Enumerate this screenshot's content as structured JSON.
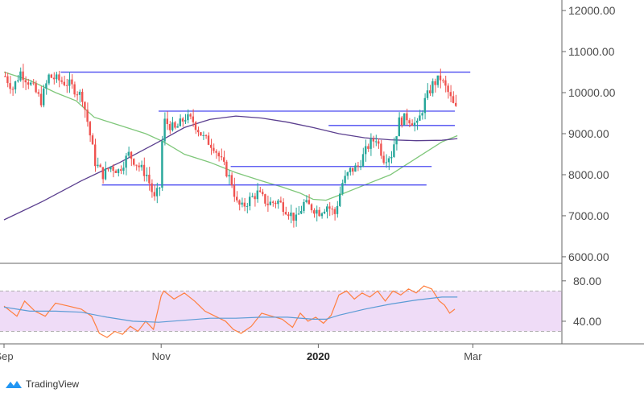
{
  "branding": {
    "label": "TradingView"
  },
  "colors": {
    "up": "#26a69a",
    "down": "#ef5350",
    "ma_fast": "#7fc77a",
    "ma_slow": "#5b3f8f",
    "hlines": "#4a4af0",
    "rsi": "#ff7f3f",
    "rsi_ma": "#5b9bd5",
    "rsi_band": "#efdcf7"
  },
  "chart_data": [
    {
      "type": "candlestick",
      "title": "",
      "y_ticks": [
        "12000.00",
        "11000.00",
        "10000.00",
        "9000.00",
        "8000.00",
        "7000.00",
        "6000.00"
      ],
      "ylim": [
        5900,
        12100
      ],
      "x_ticks": [
        {
          "label": "Sep",
          "day": 0,
          "bold": false
        },
        {
          "label": "Nov",
          "day": 61,
          "bold": false
        },
        {
          "label": "2020",
          "day": 122,
          "bold": true
        },
        {
          "label": "Mar",
          "day": 182,
          "bold": false
        }
      ],
      "anchors": [
        [
          0,
          10400
        ],
        [
          3,
          10100
        ],
        [
          6,
          10500
        ],
        [
          10,
          10200
        ],
        [
          14,
          9800
        ],
        [
          17,
          10400
        ],
        [
          21,
          10300
        ],
        [
          25,
          10200
        ],
        [
          30,
          9900
        ],
        [
          32,
          9300
        ],
        [
          35,
          8300
        ],
        [
          38,
          8000
        ],
        [
          41,
          8200
        ],
        [
          44,
          8100
        ],
        [
          48,
          8500
        ],
        [
          52,
          8200
        ],
        [
          55,
          8000
        ],
        [
          58,
          7400
        ],
        [
          60,
          7700
        ],
        [
          61,
          8800
        ],
        [
          62,
          9300
        ],
        [
          66,
          9100
        ],
        [
          70,
          9400
        ],
        [
          73,
          9300
        ],
        [
          77,
          8900
        ],
        [
          81,
          8700
        ],
        [
          85,
          8200
        ],
        [
          88,
          7800
        ],
        [
          90,
          7300
        ],
        [
          92,
          7200
        ],
        [
          95,
          7400
        ],
        [
          98,
          7550
        ],
        [
          102,
          7300
        ],
        [
          106,
          7350
        ],
        [
          110,
          7100
        ],
        [
          113,
          6900
        ],
        [
          116,
          7300
        ],
        [
          119,
          7200
        ],
        [
          122,
          7100
        ],
        [
          125,
          7250
        ],
        [
          128,
          7050
        ],
        [
          131,
          7800
        ],
        [
          134,
          8100
        ],
        [
          137,
          8200
        ],
        [
          141,
          8700
        ],
        [
          144,
          8900
        ],
        [
          147,
          8400
        ],
        [
          150,
          8500
        ],
        [
          153,
          9300
        ],
        [
          156,
          9400
        ],
        [
          160,
          9200
        ],
        [
          163,
          9800
        ],
        [
          166,
          10200
        ],
        [
          169,
          10350
        ],
        [
          172,
          10000
        ],
        [
          174,
          9700
        ],
        [
          175,
          9600
        ]
      ],
      "series": [
        {
          "name": "",
          "kind": "sma_fast",
          "points": [
            [
              0,
              10500
            ],
            [
              10,
              10300
            ],
            [
              20,
              10000
            ],
            [
              28,
              9800
            ],
            [
              35,
              9400
            ],
            [
              45,
              9200
            ],
            [
              55,
              9000
            ],
            [
              62,
              8800
            ],
            [
              70,
              8500
            ],
            [
              80,
              8300
            ],
            [
              90,
              8050
            ],
            [
              100,
              7850
            ],
            [
              108,
              7700
            ],
            [
              115,
              7550
            ],
            [
              120,
              7400
            ],
            [
              125,
              7380
            ],
            [
              130,
              7500
            ],
            [
              140,
              7750
            ],
            [
              150,
              8000
            ],
            [
              160,
              8400
            ],
            [
              170,
              8800
            ],
            [
              176,
              8950
            ]
          ]
        },
        {
          "name": "",
          "kind": "sma_slow",
          "points": [
            [
              0,
              6900
            ],
            [
              15,
              7350
            ],
            [
              30,
              7850
            ],
            [
              45,
              8300
            ],
            [
              60,
              8800
            ],
            [
              70,
              9150
            ],
            [
              80,
              9350
            ],
            [
              90,
              9430
            ],
            [
              100,
              9380
            ],
            [
              110,
              9280
            ],
            [
              120,
              9150
            ],
            [
              130,
              9000
            ],
            [
              140,
              8900
            ],
            [
              150,
              8850
            ],
            [
              160,
              8830
            ],
            [
              170,
              8840
            ],
            [
              176,
              8880
            ]
          ]
        }
      ],
      "horizontal_levels": [
        {
          "value": 10500,
          "from_day": 22,
          "to_day": 181
        },
        {
          "value": 9550,
          "from_day": 60,
          "to_day": 175
        },
        {
          "value": 9200,
          "from_day": 126,
          "to_day": 175
        },
        {
          "value": 8200,
          "from_day": 88,
          "to_day": 166
        },
        {
          "value": 7750,
          "from_day": 38,
          "to_day": 164
        }
      ]
    },
    {
      "type": "line",
      "title": "",
      "y_ticks": [
        "80.00",
        "40.00"
      ],
      "ylim": [
        20,
        95
      ],
      "band": [
        30,
        70
      ],
      "series": [
        {
          "name": "",
          "kind": "rsi",
          "points": [
            [
              0,
              55
            ],
            [
              5,
              45
            ],
            [
              8,
              60
            ],
            [
              12,
              50
            ],
            [
              16,
              45
            ],
            [
              20,
              58
            ],
            [
              25,
              55
            ],
            [
              30,
              52
            ],
            [
              34,
              45
            ],
            [
              37,
              28
            ],
            [
              40,
              24
            ],
            [
              43,
              30
            ],
            [
              46,
              27
            ],
            [
              49,
              35
            ],
            [
              52,
              30
            ],
            [
              55,
              40
            ],
            [
              58,
              32
            ],
            [
              61,
              65
            ],
            [
              62,
              70
            ],
            [
              66,
              62
            ],
            [
              70,
              68
            ],
            [
              74,
              60
            ],
            [
              78,
              50
            ],
            [
              82,
              45
            ],
            [
              86,
              40
            ],
            [
              89,
              32
            ],
            [
              92,
              28
            ],
            [
              96,
              35
            ],
            [
              100,
              48
            ],
            [
              104,
              45
            ],
            [
              108,
              42
            ],
            [
              112,
              34
            ],
            [
              115,
              48
            ],
            [
              118,
              40
            ],
            [
              121,
              44
            ],
            [
              124,
              38
            ],
            [
              127,
              46
            ],
            [
              130,
              66
            ],
            [
              133,
              70
            ],
            [
              136,
              62
            ],
            [
              139,
              68
            ],
            [
              142,
              64
            ],
            [
              145,
              70
            ],
            [
              148,
              60
            ],
            [
              151,
              70
            ],
            [
              154,
              66
            ],
            [
              157,
              72
            ],
            [
              160,
              68
            ],
            [
              163,
              75
            ],
            [
              166,
              72
            ],
            [
              169,
              60
            ],
            [
              171,
              56
            ],
            [
              173,
              48
            ],
            [
              175,
              52
            ]
          ]
        },
        {
          "name": "",
          "kind": "rsi_ma",
          "points": [
            [
              0,
              54
            ],
            [
              10,
              50
            ],
            [
              20,
              50
            ],
            [
              30,
              49
            ],
            [
              40,
              44
            ],
            [
              50,
              40
            ],
            [
              60,
              39
            ],
            [
              70,
              41
            ],
            [
              80,
              43
            ],
            [
              90,
              43
            ],
            [
              100,
              44
            ],
            [
              110,
              44
            ],
            [
              120,
              42
            ],
            [
              125,
              42
            ],
            [
              130,
              46
            ],
            [
              140,
              52
            ],
            [
              150,
              57
            ],
            [
              160,
              61
            ],
            [
              170,
              64
            ],
            [
              176,
              64
            ]
          ]
        }
      ]
    }
  ]
}
